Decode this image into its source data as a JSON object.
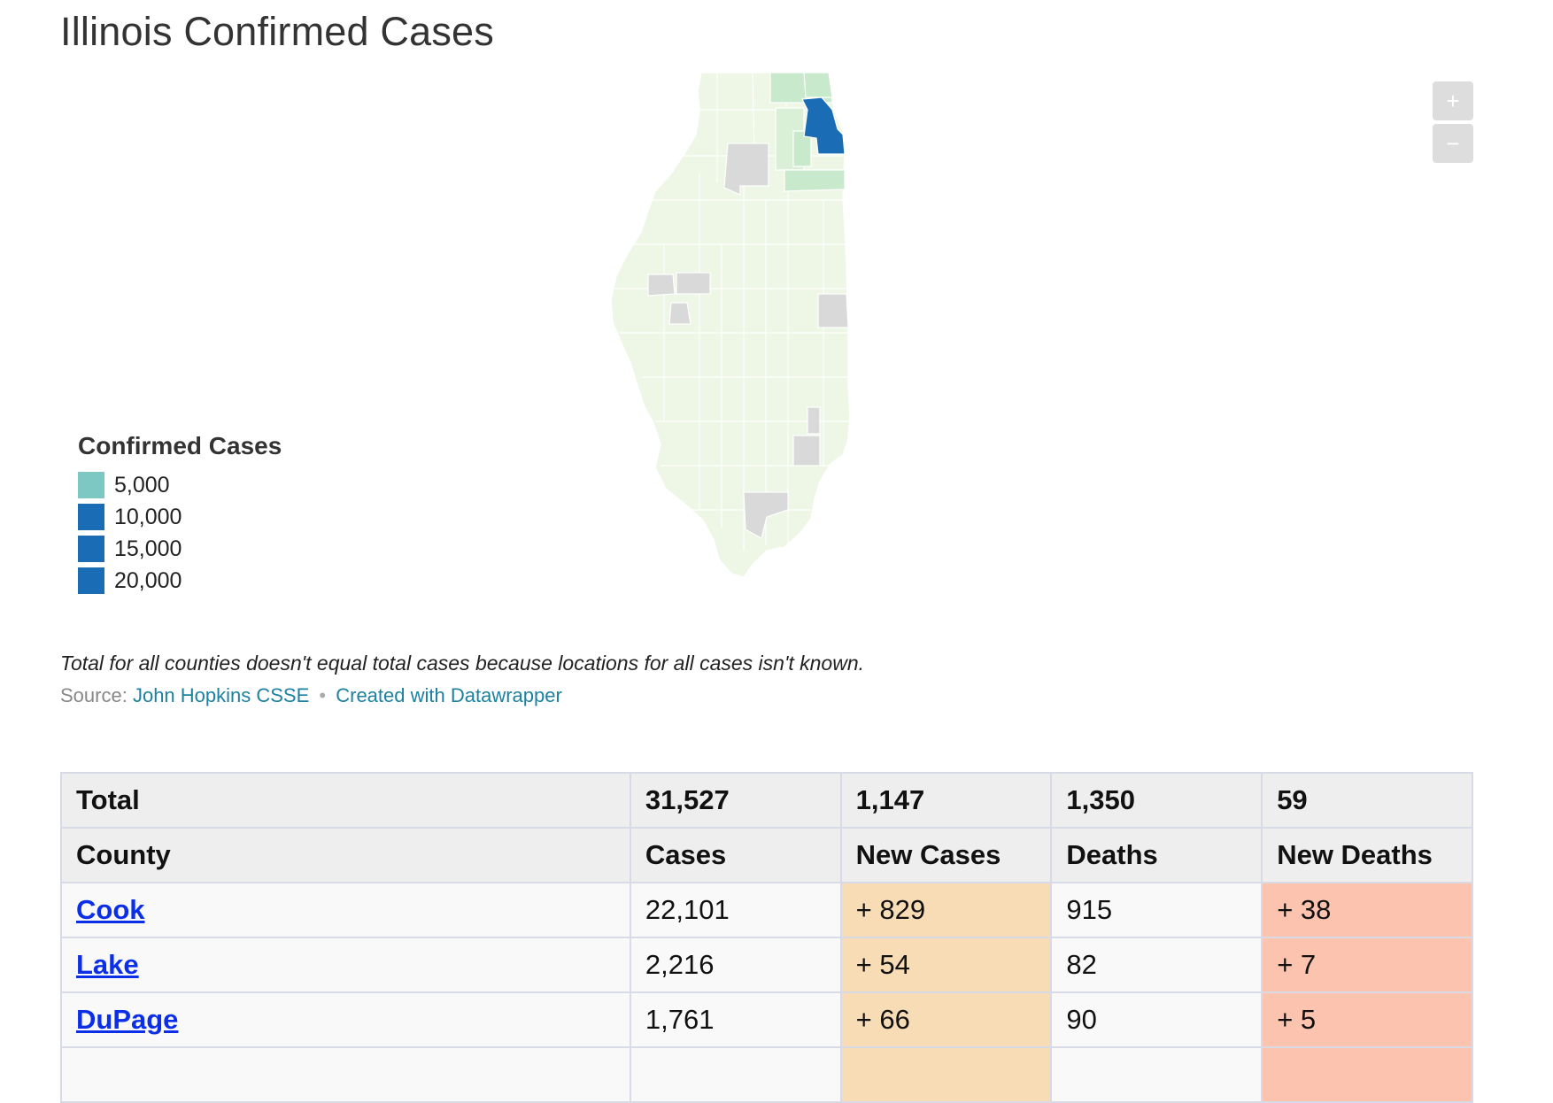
{
  "title": "Illinois Confirmed Cases",
  "map": {
    "zoom_in_label": "+",
    "zoom_out_label": "−",
    "colors": {
      "base": "#eef7e6",
      "low": "#c8e9cc",
      "high": "#1a6db4",
      "nodata": "#d9d9d9",
      "border": "#ffffff"
    }
  },
  "legend": {
    "title": "Confirmed Cases",
    "items": [
      {
        "label": "5,000",
        "color": "#7ec8c4"
      },
      {
        "label": "10,000",
        "color": "#1a6db4"
      },
      {
        "label": "15,000",
        "color": "#1a6db4"
      },
      {
        "label": "20,000",
        "color": "#1a6db4"
      }
    ]
  },
  "note": "Total for all counties doesn't equal total cases because locations for all cases isn't known.",
  "source": {
    "prefix": "Source:",
    "link1": "John Hopkins CSSE",
    "separator": "•",
    "link2": "Created with Datawrapper"
  },
  "table": {
    "total": {
      "label": "Total",
      "cases": "31,527",
      "new_cases": "1,147",
      "deaths": "1,350",
      "new_deaths": "59"
    },
    "headers": {
      "county": "County",
      "cases": "Cases",
      "new_cases": "New Cases",
      "deaths": "Deaths",
      "new_deaths": "New Deaths"
    },
    "rows": [
      {
        "county": "Cook",
        "cases": "22,101",
        "new_cases": "+ 829",
        "deaths": "915",
        "new_deaths": "+ 38"
      },
      {
        "county": "Lake",
        "cases": "2,216",
        "new_cases": "+ 54",
        "deaths": "82",
        "new_deaths": "+ 7"
      },
      {
        "county": "DuPage",
        "cases": "1,761",
        "new_cases": "+ 66",
        "deaths": "90",
        "new_deaths": "+ 5"
      },
      {
        "county": "",
        "cases": "",
        "new_cases": "",
        "deaths": "",
        "new_deaths": ""
      }
    ]
  }
}
